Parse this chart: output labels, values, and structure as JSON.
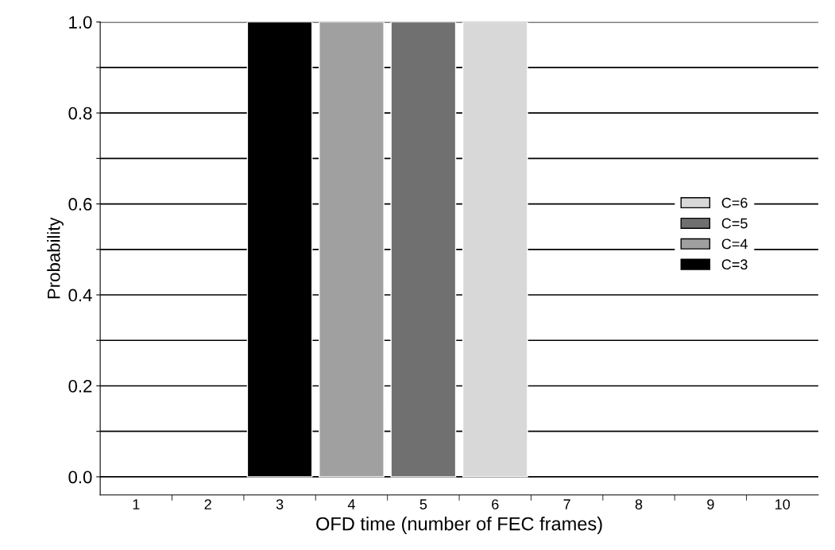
{
  "chart_data": {
    "type": "bar",
    "xlabel": "OFD time (number of FEC frames)",
    "ylabel": "Probability",
    "categories": [
      "1",
      "2",
      "3",
      "4",
      "5",
      "6",
      "7",
      "8",
      "9",
      "10"
    ],
    "series": [
      {
        "name": "C=3",
        "color": "#000000",
        "values": [
          null,
          null,
          1.0,
          null,
          null,
          null,
          null,
          null,
          null,
          null
        ]
      },
      {
        "name": "C=4",
        "color": "#a0a0a0",
        "values": [
          null,
          null,
          null,
          1.0,
          null,
          null,
          null,
          null,
          null,
          null
        ]
      },
      {
        "name": "C=5",
        "color": "#707070",
        "values": [
          null,
          null,
          null,
          null,
          1.0,
          null,
          null,
          null,
          null,
          null
        ]
      },
      {
        "name": "C=6",
        "color": "#d8d8d8",
        "values": [
          null,
          null,
          null,
          null,
          null,
          1.0,
          null,
          null,
          null,
          null
        ]
      }
    ],
    "ylim": [
      -0.04,
      1.0
    ],
    "yticks": [
      {
        "value": 0.0,
        "label": "0.0"
      },
      {
        "value": 0.1,
        "label": null
      },
      {
        "value": 0.2,
        "label": "0.2"
      },
      {
        "value": 0.3,
        "label": null
      },
      {
        "value": 0.4,
        "label": "0.4"
      },
      {
        "value": 0.5,
        "label": null
      },
      {
        "value": 0.6,
        "label": "0.6"
      },
      {
        "value": 0.7,
        "label": null
      },
      {
        "value": 0.8,
        "label": "0.8"
      },
      {
        "value": 0.9,
        "label": null
      },
      {
        "value": 1.0,
        "label": "1.0"
      }
    ],
    "grid": "y",
    "legend": "right"
  }
}
